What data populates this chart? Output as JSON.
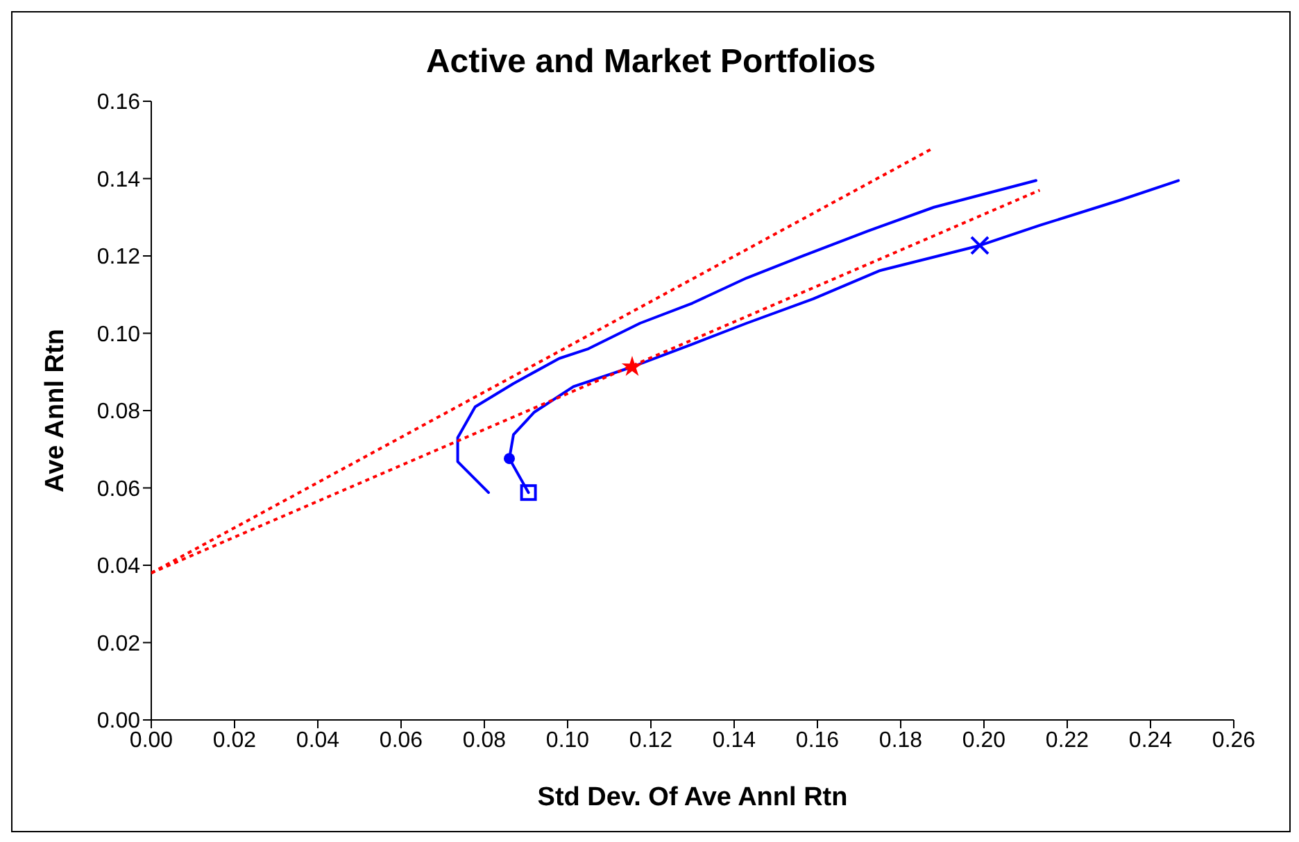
{
  "chart_data": {
    "type": "line",
    "title": "Active and Market Portfolios",
    "xlabel": "Std Dev. Of Ave Annl Rtn",
    "ylabel": "Ave Annl Rtn",
    "xlim": [
      0,
      0.26
    ],
    "xticks": [
      {
        "value": 0,
        "label": "0.00"
      },
      {
        "value": 0.02,
        "label": "0.02"
      },
      {
        "value": 0.04,
        "label": "0.04"
      },
      {
        "value": 0.06,
        "label": "0.06"
      },
      {
        "value": 0.08,
        "label": "0.08"
      },
      {
        "value": 0.1,
        "label": "0.10"
      },
      {
        "value": 0.12,
        "label": "0.12"
      },
      {
        "value": 0.14,
        "label": "0.14"
      },
      {
        "value": 0.16,
        "label": "0.16"
      },
      {
        "value": 0.18,
        "label": "0.18"
      },
      {
        "value": 0.2,
        "label": "0.20"
      },
      {
        "value": 0.22,
        "label": "0.22"
      },
      {
        "value": 0.24,
        "label": "0.24"
      },
      {
        "value": 0.26,
        "label": "0.26"
      }
    ],
    "ylim": [
      0,
      0.16
    ],
    "yticks": [
      {
        "value": 0,
        "label": "0.00"
      },
      {
        "value": 0.02,
        "label": "0.02"
      },
      {
        "value": 0.04,
        "label": "0.04"
      },
      {
        "value": 0.06,
        "label": "0.06"
      },
      {
        "value": 0.08,
        "label": "0.08"
      },
      {
        "value": 0.1,
        "label": "0.10"
      },
      {
        "value": 0.12,
        "label": "0.12"
      },
      {
        "value": 0.14,
        "label": "0.14"
      },
      {
        "value": 0.16,
        "label": "0.16"
      }
    ],
    "grid": false,
    "marker": "none",
    "line_style": "solid",
    "series": [
      {
        "color": "#0000ff",
        "x": [
          0.081,
          0.0736,
          0.0736,
          0.0778,
          0.087,
          0.098,
          0.105,
          0.1174,
          0.13,
          0.143,
          0.156,
          0.172,
          0.188,
          0.2125
        ],
        "values": [
          0.0588,
          0.0668,
          0.073,
          0.081,
          0.087,
          0.0935,
          0.096,
          0.1026,
          0.1078,
          0.1143,
          0.1198,
          0.1264,
          0.1326,
          0.1395
        ]
      },
      {
        "color": "#0000ff",
        "x": [
          0.0906,
          0.086,
          0.087,
          0.092,
          0.1014,
          0.1155,
          0.13,
          0.143,
          0.159,
          0.175,
          0.199,
          0.2134,
          0.2326,
          0.2467
        ],
        "values": [
          0.0588,
          0.0676,
          0.0738,
          0.0796,
          0.0862,
          0.0913,
          0.0972,
          0.1026,
          0.1089,
          0.1162,
          0.1227,
          0.1279,
          0.1344,
          0.1395
        ]
      },
      {
        "color": "#ff0000",
        "line_style": "dotted",
        "x": [
          0,
          0.188
        ],
        "values": [
          0.038,
          0.148
        ]
      },
      {
        "color": "#ff0000",
        "line_style": "dotted",
        "x": [
          0,
          0.2134
        ],
        "values": [
          0.038,
          0.137
        ]
      },
      {
        "type": "scatter",
        "color": "#0000ff",
        "marker": "square",
        "x": [
          0.0906
        ],
        "values": [
          0.0588
        ]
      },
      {
        "type": "scatter",
        "color": "#0000ff",
        "marker": "circle",
        "x": [
          0.086
        ],
        "values": [
          0.0676
        ]
      },
      {
        "type": "scatter",
        "color": "#ff0000",
        "marker": "star",
        "x": [
          0.1155
        ],
        "values": [
          0.0913
        ]
      },
      {
        "type": "scatter",
        "color": "#0000ff",
        "marker": "cross",
        "x": [
          0.199
        ],
        "values": [
          0.1227
        ]
      }
    ]
  }
}
